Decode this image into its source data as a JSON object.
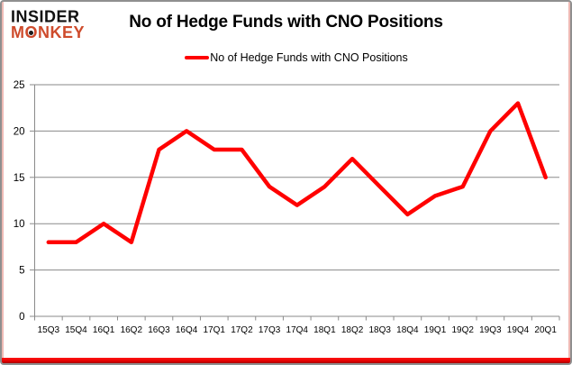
{
  "brand": {
    "line1": "INSIDER",
    "line2_parts": [
      "M",
      "O",
      "NKEY"
    ]
  },
  "header": {
    "title": "No of Hedge Funds with CNO Positions"
  },
  "legend": {
    "label": "No of Hedge Funds with CNO Positions",
    "swatch_color": "#ff0000"
  },
  "chart_data": {
    "type": "line",
    "title": "No of Hedge Funds with CNO Positions",
    "categories": [
      "15Q3",
      "15Q4",
      "16Q1",
      "16Q2",
      "16Q3",
      "16Q4",
      "17Q1",
      "17Q2",
      "17Q3",
      "17Q4",
      "18Q1",
      "18Q2",
      "18Q3",
      "18Q4",
      "19Q1",
      "19Q2",
      "19Q3",
      "19Q4",
      "20Q1"
    ],
    "series": [
      {
        "name": "No of Hedge Funds with CNO Positions",
        "color": "#ff0000",
        "values": [
          8,
          8,
          10,
          8,
          18,
          20,
          18,
          18,
          14,
          12,
          14,
          17,
          14,
          11,
          13,
          14,
          20,
          23,
          15
        ]
      }
    ],
    "xlabel": "",
    "ylabel": "",
    "ylim": [
      0,
      25
    ],
    "yticks": [
      0,
      5,
      10,
      15,
      20,
      25
    ],
    "grid": true,
    "legend_position": "top-center"
  },
  "colors": {
    "series_red": "#ff0000",
    "brand_orange": "#ce4b2c",
    "grid_gray": "#8a8a8a",
    "frame_gray": "#8f8f8f",
    "edge_pink": "#eeb9b4",
    "bottom_bar_red": "#e40000"
  }
}
